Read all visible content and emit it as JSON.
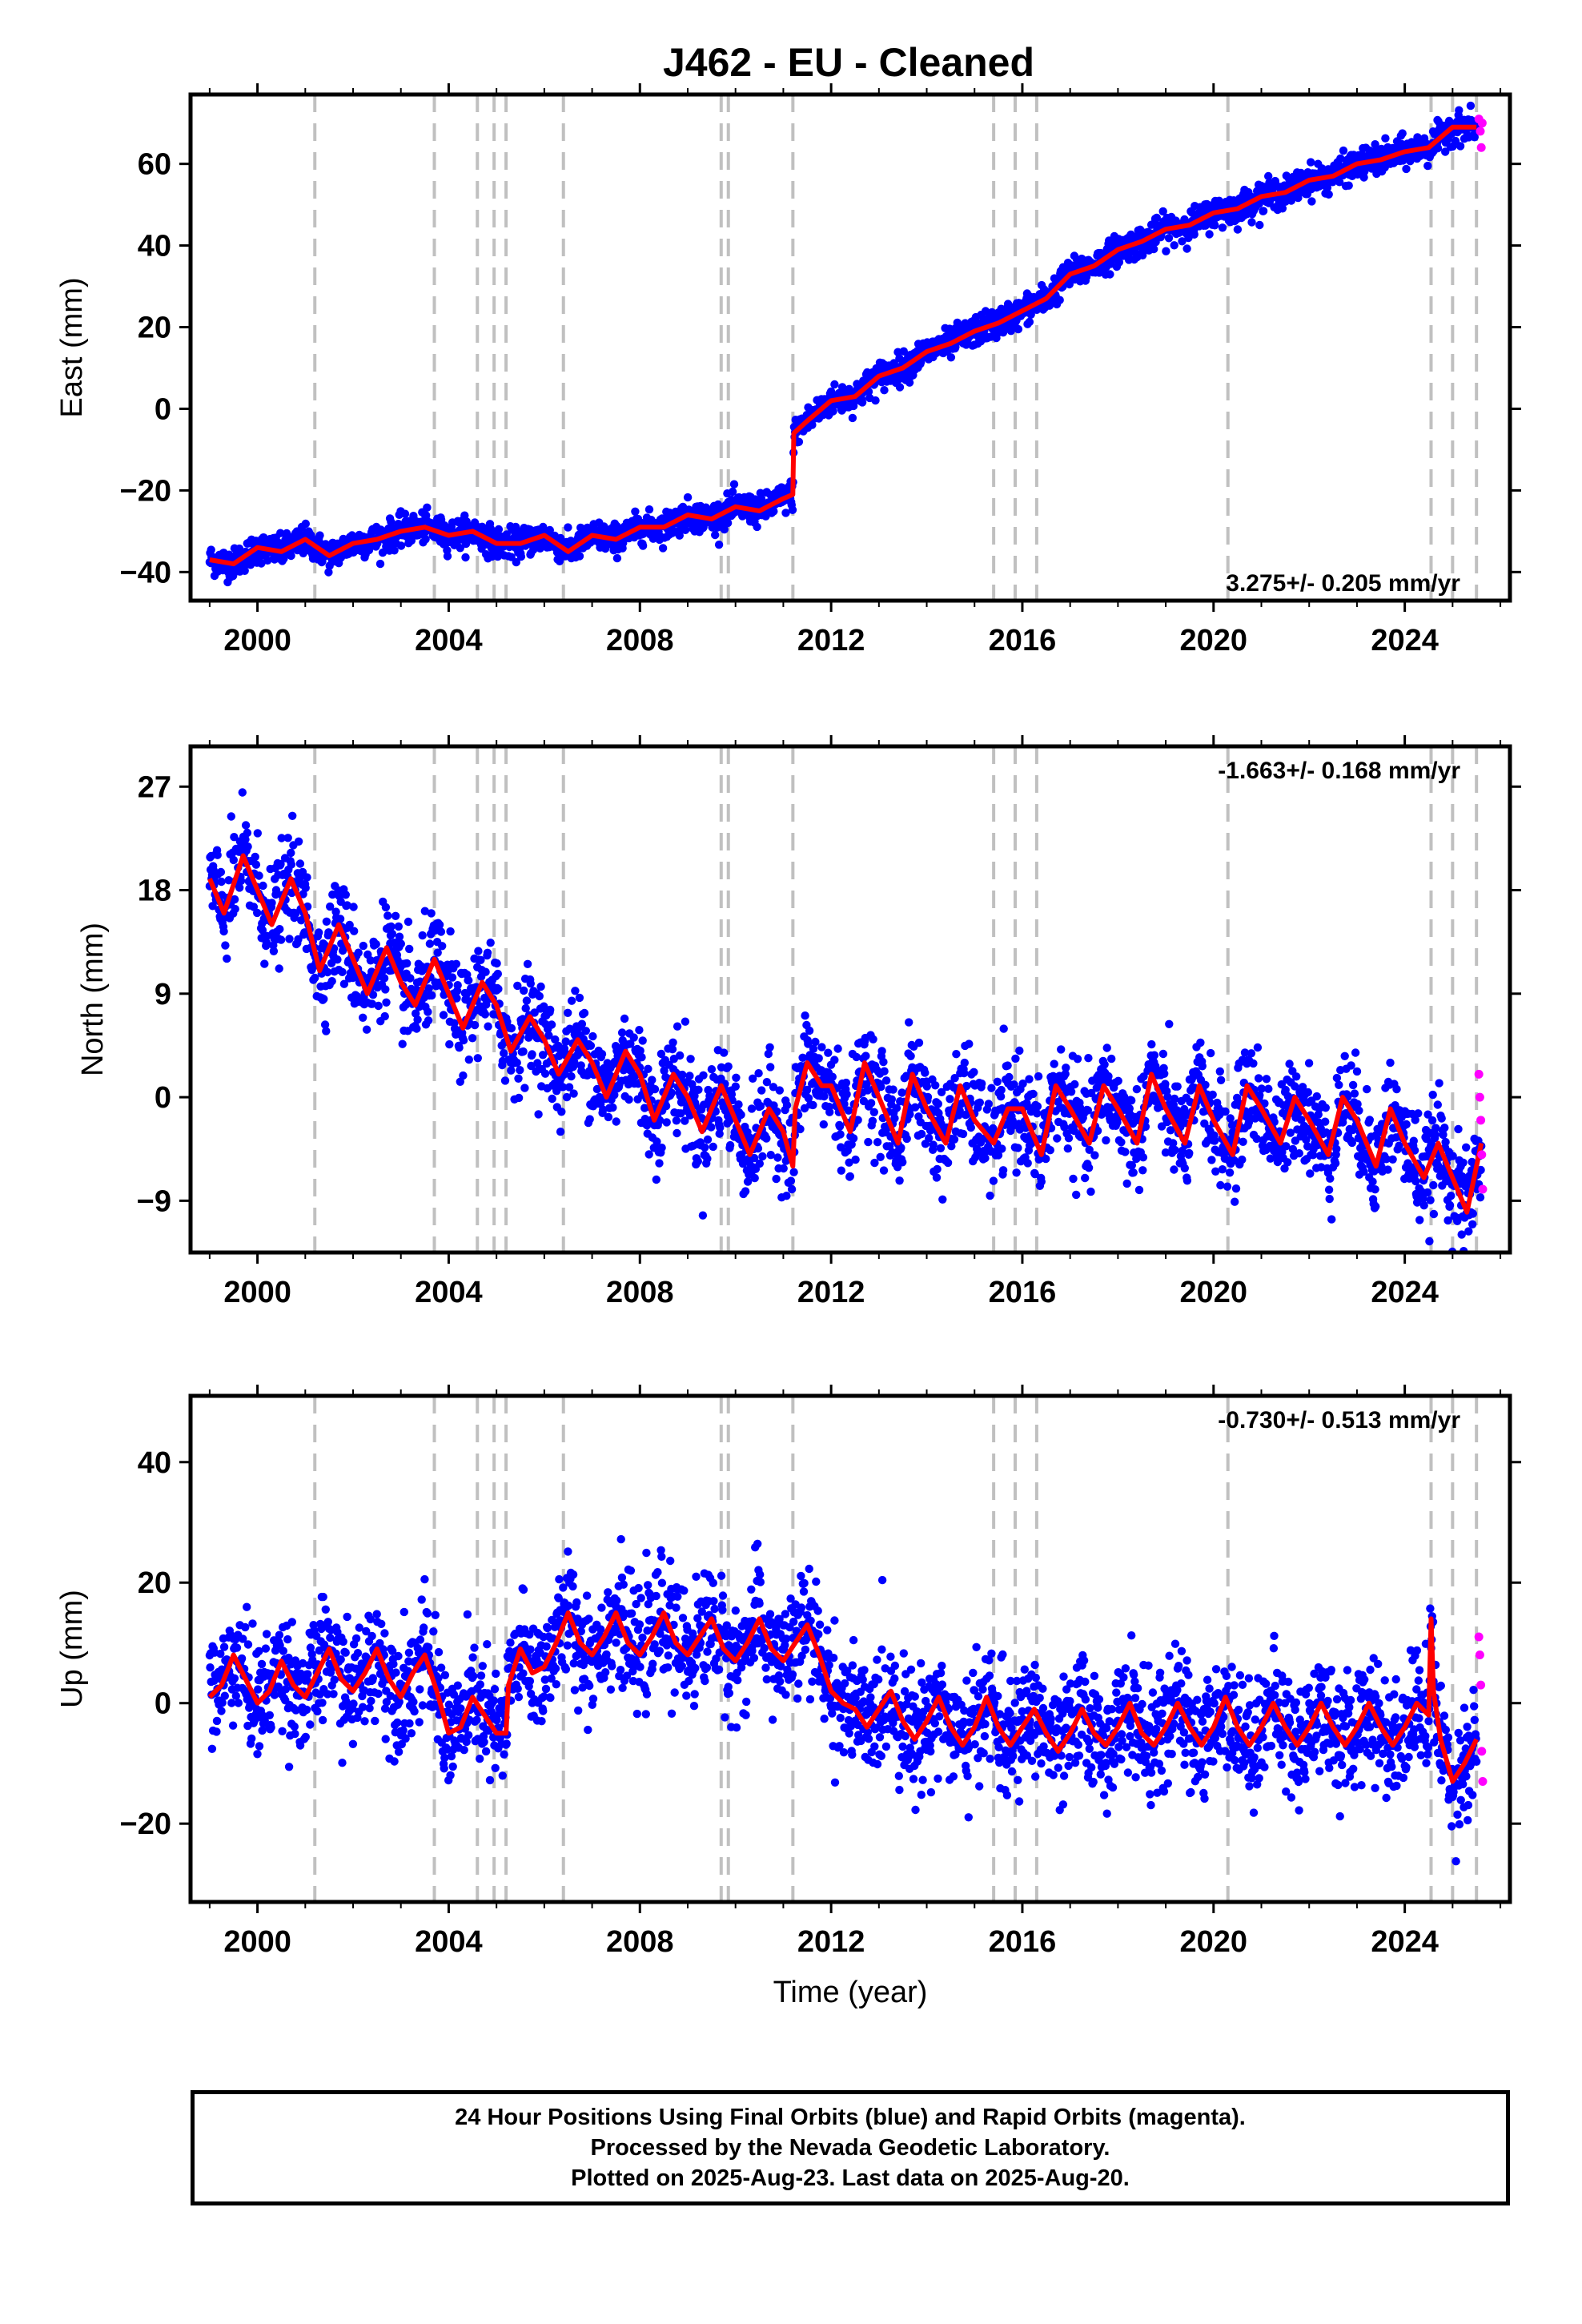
{
  "title": "J462  - EU - Cleaned",
  "xlabel": "Time (year)",
  "colors": {
    "final": "#0000ff",
    "rapid": "#ff00ff",
    "model": "#ff0000",
    "event": "#c0c0c0",
    "frame": "#000000"
  },
  "footer": {
    "line1": "24 Hour Positions Using Final Orbits (blue) and Rapid Orbits (magenta).",
    "line2": "Processed by the Nevada Geodetic Laboratory.",
    "line3": "Plotted on 2025-Aug-23. Last data on 2025-Aug-20."
  },
  "chart_data": [
    {
      "type": "scatter",
      "component": "east",
      "ylabel": "East (mm)",
      "rate_text": "3.275+/- 0.205 mm/yr",
      "xlim": [
        1998.6,
        2026.2
      ],
      "ylim": [
        -47,
        77
      ],
      "xticks": [
        2000,
        2004,
        2008,
        2012,
        2016,
        2020,
        2024
      ],
      "yticks": [
        -40,
        -20,
        0,
        20,
        40,
        60
      ],
      "event_lines": [
        2001.2,
        2003.7,
        2004.6,
        2004.95,
        2005.2,
        2006.4,
        2009.7,
        2009.85,
        2011.2,
        2015.4,
        2015.85,
        2016.3,
        2020.3,
        2024.55,
        2025.0,
        2025.5
      ],
      "model": {
        "x": [
          1999.0,
          1999.5,
          2000.0,
          2000.5,
          2001.0,
          2001.5,
          2002.0,
          2002.5,
          2003.0,
          2003.5,
          2004.0,
          2004.5,
          2005.0,
          2005.5,
          2006.0,
          2006.5,
          2007.0,
          2007.5,
          2008.0,
          2008.5,
          2009.0,
          2009.5,
          2010.0,
          2010.5,
          2011.0,
          2011.2,
          2011.22,
          2011.5,
          2012.0,
          2012.5,
          2013.0,
          2013.5,
          2014.0,
          2014.5,
          2015.0,
          2015.5,
          2016.0,
          2016.5,
          2017.0,
          2017.5,
          2018.0,
          2018.5,
          2019.0,
          2019.5,
          2020.0,
          2020.5,
          2021.0,
          2021.5,
          2022.0,
          2022.5,
          2023.0,
          2023.5,
          2024.0,
          2024.5,
          2025.0,
          2025.5
        ],
        "y": [
          -37,
          -38,
          -34,
          -35,
          -32,
          -36,
          -33,
          -32,
          -30,
          -29,
          -31,
          -30,
          -33,
          -33,
          -31,
          -35,
          -31,
          -32,
          -29,
          -29,
          -26,
          -27,
          -24,
          -25,
          -22,
          -21,
          -6,
          -3,
          2,
          3,
          8,
          10,
          14,
          16,
          19,
          21,
          24,
          27,
          33,
          35,
          39,
          41,
          44,
          45,
          48,
          49,
          52,
          53,
          56,
          57,
          60,
          61,
          63,
          64,
          69,
          69
        ]
      },
      "rapid": {
        "x": [
          2025.55,
          2025.58,
          2025.6,
          2025.62
        ],
        "y": [
          71,
          68,
          64,
          70
        ]
      }
    },
    {
      "type": "scatter",
      "component": "north",
      "ylabel": "North (mm)",
      "rate_text": "-1.663+/- 0.168 mm/yr",
      "xlim": [
        1998.6,
        2026.2
      ],
      "ylim": [
        -13.5,
        30.5
      ],
      "xticks": [
        2000,
        2004,
        2008,
        2012,
        2016,
        2020,
        2024
      ],
      "yticks": [
        -9,
        0,
        9,
        18,
        27
      ],
      "event_lines": [
        2001.2,
        2003.7,
        2004.6,
        2004.95,
        2005.2,
        2006.4,
        2009.7,
        2009.85,
        2011.2,
        2015.4,
        2015.85,
        2016.3,
        2020.3,
        2024.55,
        2025.0,
        2025.5
      ],
      "model": {
        "x": [
          1999.0,
          1999.3,
          1999.7,
          2000.0,
          2000.3,
          2000.7,
          2001.0,
          2001.3,
          2001.7,
          2002.0,
          2002.3,
          2002.7,
          2003.0,
          2003.3,
          2003.7,
          2004.0,
          2004.3,
          2004.7,
          2005.0,
          2005.3,
          2005.7,
          2006.0,
          2006.3,
          2006.7,
          2007.0,
          2007.3,
          2007.7,
          2008.0,
          2008.3,
          2008.7,
          2009.0,
          2009.3,
          2009.7,
          2010.0,
          2010.3,
          2010.7,
          2011.0,
          2011.2,
          2011.25,
          2011.5,
          2011.8,
          2012.0,
          2012.4,
          2012.7,
          2013.0,
          2013.4,
          2013.7,
          2014.0,
          2014.4,
          2014.7,
          2015.0,
          2015.4,
          2015.7,
          2016.0,
          2016.4,
          2016.7,
          2017.0,
          2017.4,
          2017.7,
          2018.0,
          2018.4,
          2018.7,
          2019.0,
          2019.4,
          2019.7,
          2020.0,
          2020.4,
          2020.7,
          2021.0,
          2021.4,
          2021.7,
          2022.0,
          2022.4,
          2022.7,
          2023.0,
          2023.4,
          2023.7,
          2024.0,
          2024.4,
          2024.7,
          2025.0,
          2025.3,
          2025.6
        ],
        "y": [
          19,
          16,
          21,
          18,
          15,
          19,
          16,
          11,
          15,
          12,
          9,
          13,
          10,
          8,
          12,
          9,
          6,
          10,
          8,
          4,
          7,
          5,
          2,
          5,
          3,
          0,
          4,
          2,
          -2,
          2,
          0,
          -3,
          1,
          -2,
          -5,
          -1,
          -3,
          -6,
          -1,
          3,
          1,
          1,
          -3,
          3,
          0,
          -4,
          2,
          -1,
          -4,
          1,
          -2,
          -4,
          -1,
          -1,
          -5,
          1,
          -1,
          -4,
          1,
          -1,
          -4,
          2,
          -1,
          -4,
          1,
          -2,
          -5,
          1,
          -1,
          -4,
          0,
          -2,
          -5,
          0,
          -2,
          -6,
          -1,
          -4,
          -7,
          -4,
          -7,
          -10,
          -4
        ]
      },
      "rapid": {
        "x": [
          2025.55,
          2025.57,
          2025.59,
          2025.61,
          2025.63
        ],
        "y": [
          2,
          0,
          -2,
          -5,
          -8
        ]
      }
    },
    {
      "type": "scatter",
      "component": "up",
      "ylabel": "Up (mm)",
      "rate_text": "-0.730+/- 0.513 mm/yr",
      "xlim": [
        1998.6,
        2026.2
      ],
      "ylim": [
        -33,
        51
      ],
      "xticks": [
        2000,
        2004,
        2008,
        2012,
        2016,
        2020,
        2024
      ],
      "yticks": [
        -20,
        0,
        20,
        40
      ],
      "event_lines": [
        2001.2,
        2003.7,
        2004.6,
        2004.95,
        2005.2,
        2006.4,
        2009.7,
        2009.85,
        2011.2,
        2015.4,
        2015.85,
        2016.3,
        2020.3,
        2024.55,
        2025.0,
        2025.5
      ],
      "model": {
        "x": [
          1999.0,
          1999.25,
          1999.5,
          1999.75,
          2000.0,
          2000.25,
          2000.5,
          2000.75,
          2001.0,
          2001.25,
          2001.5,
          2001.75,
          2002.0,
          2002.25,
          2002.5,
          2002.75,
          2003.0,
          2003.25,
          2003.5,
          2003.75,
          2004.0,
          2004.25,
          2004.5,
          2004.75,
          2005.0,
          2005.2,
          2005.25,
          2005.5,
          2005.75,
          2006.0,
          2006.25,
          2006.5,
          2006.75,
          2007.0,
          2007.25,
          2007.5,
          2007.75,
          2008.0,
          2008.25,
          2008.5,
          2008.75,
          2009.0,
          2009.25,
          2009.5,
          2009.75,
          2010.0,
          2010.25,
          2010.5,
          2010.75,
          2011.0,
          2011.25,
          2011.5,
          2011.75,
          2012.0,
          2012.25,
          2012.5,
          2012.75,
          2013.0,
          2013.25,
          2013.5,
          2013.75,
          2014.0,
          2014.25,
          2014.5,
          2014.75,
          2015.0,
          2015.25,
          2015.5,
          2015.75,
          2016.0,
          2016.25,
          2016.5,
          2016.75,
          2017.0,
          2017.25,
          2017.5,
          2017.75,
          2018.0,
          2018.25,
          2018.5,
          2018.75,
          2019.0,
          2019.25,
          2019.5,
          2019.75,
          2020.0,
          2020.25,
          2020.5,
          2020.75,
          2021.0,
          2021.25,
          2021.5,
          2021.75,
          2022.0,
          2022.25,
          2022.5,
          2022.75,
          2023.0,
          2023.25,
          2023.5,
          2023.75,
          2024.0,
          2024.25,
          2024.5,
          2024.55,
          2024.6,
          2024.75,
          2025.0,
          2025.25,
          2025.5
        ],
        "y": [
          1,
          3,
          8,
          4,
          0,
          2,
          7,
          3,
          1,
          5,
          9,
          4,
          2,
          5,
          9,
          4,
          1,
          5,
          8,
          2,
          -5,
          -4,
          1,
          -2,
          -5,
          -5,
          3,
          9,
          5,
          6,
          10,
          15,
          10,
          8,
          11,
          15,
          10,
          8,
          11,
          15,
          10,
          8,
          11,
          14,
          9,
          7,
          10,
          14,
          9,
          7,
          10,
          13,
          8,
          2,
          0,
          -1,
          -4,
          -1,
          2,
          -3,
          -6,
          -3,
          1,
          -4,
          -7,
          -4,
          1,
          -4,
          -7,
          -4,
          -1,
          -5,
          -8,
          -5,
          -1,
          -5,
          -7,
          -4,
          0,
          -5,
          -7,
          -4,
          0,
          -4,
          -7,
          -4,
          1,
          -4,
          -7,
          -4,
          0,
          -4,
          -7,
          -4,
          0,
          -4,
          -7,
          -4,
          0,
          -4,
          -7,
          -4,
          0,
          -2,
          14,
          2,
          -6,
          -13,
          -10,
          -6
        ]
      },
      "rapid": {
        "x": [
          2025.55,
          2025.57,
          2025.59,
          2025.61,
          2025.63
        ],
        "y": [
          11,
          8,
          3,
          -8,
          -13
        ]
      }
    }
  ]
}
